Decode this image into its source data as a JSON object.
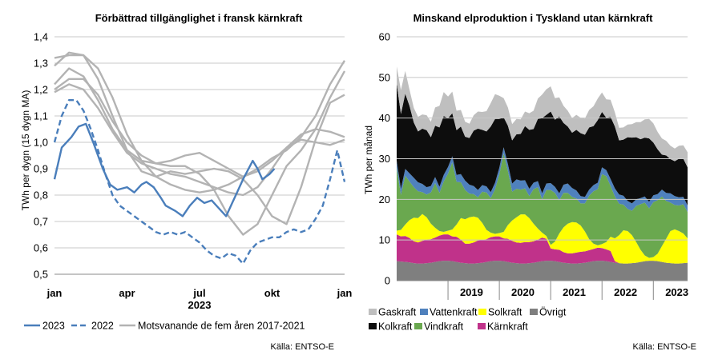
{
  "chart_data": [
    {
      "type": "line",
      "title": "Förbättrad tillgänglighet i fransk kärnkraft",
      "ylabel": "TWh per dygn (15 dygn MA)",
      "xlabel": "2023",
      "ylim": [
        0.5,
        1.4
      ],
      "yticks": [
        "1,4",
        "1,3",
        "1,2",
        "1,1",
        "1,0",
        "0,9",
        "0,8",
        "0,7",
        "0,6",
        "0,5"
      ],
      "yticks_values": [
        1.4,
        1.3,
        1.2,
        1.1,
        1.0,
        0.9,
        0.8,
        0.7,
        0.6,
        0.5
      ],
      "xticks": [
        "jan",
        "apr",
        "jul",
        "okt",
        "jan"
      ],
      "xticks_months": [
        0,
        3,
        6,
        9,
        12
      ],
      "grid": true,
      "legend_position": "bottom",
      "legend": [
        "2023",
        "2022",
        "Motsvanande de fem åren 2017-2021"
      ],
      "source": "Källa: ENTSO-E",
      "colors": {
        "s2023": "#4a7ebb",
        "s2022": "#4a7ebb",
        "hist": "#b3b3b3"
      },
      "series": [
        {
          "name": "2023",
          "style": "solid",
          "months": [
            0,
            0.3,
            0.7,
            1.0,
            1.3,
            1.6,
            2.0,
            2.3,
            2.6,
            3.0,
            3.3,
            3.6,
            3.8,
            4.1,
            4.4,
            4.6,
            5.0,
            5.3,
            5.6,
            5.9,
            6.2,
            6.5,
            6.8,
            7.1,
            7.3,
            7.5,
            7.8,
            8.2,
            8.4,
            8.6,
            8.9,
            9.1
          ],
          "y": [
            0.86,
            0.98,
            1.02,
            1.06,
            1.07,
            1.0,
            0.9,
            0.84,
            0.82,
            0.83,
            0.81,
            0.84,
            0.85,
            0.83,
            0.79,
            0.76,
            0.74,
            0.72,
            0.76,
            0.79,
            0.77,
            0.78,
            0.75,
            0.72,
            0.76,
            0.8,
            0.86,
            0.93,
            0.9,
            0.86,
            0.88,
            0.9
          ]
        },
        {
          "name": "2022",
          "style": "dashed",
          "months": [
            0,
            0.3,
            0.6,
            0.9,
            1.2,
            1.5,
            1.8,
            2.1,
            2.4,
            2.7,
            3.0,
            3.3,
            3.6,
            3.9,
            4.2,
            4.5,
            4.8,
            5.1,
            5.4,
            5.7,
            6.0,
            6.3,
            6.6,
            6.9,
            7.2,
            7.5,
            7.8,
            8.1,
            8.4,
            8.7,
            9.0,
            9.3,
            9.6,
            9.9,
            10.2,
            10.5,
            10.8,
            11.1,
            11.4,
            11.7,
            12.0
          ],
          "y": [
            1.0,
            1.1,
            1.16,
            1.16,
            1.12,
            1.05,
            0.97,
            0.88,
            0.8,
            0.76,
            0.74,
            0.72,
            0.7,
            0.68,
            0.66,
            0.65,
            0.66,
            0.65,
            0.66,
            0.64,
            0.62,
            0.59,
            0.57,
            0.56,
            0.58,
            0.57,
            0.54,
            0.59,
            0.62,
            0.63,
            0.64,
            0.64,
            0.66,
            0.67,
            0.66,
            0.67,
            0.71,
            0.76,
            0.86,
            0.97,
            0.85
          ]
        },
        {
          "name": "hist1",
          "style": "solid",
          "months": [
            0,
            0.6,
            1.2,
            1.8,
            2.4,
            3.0,
            3.6,
            4.2,
            4.8,
            5.4,
            6.0,
            6.6,
            7.2,
            7.8,
            8.4,
            9.0,
            9.6,
            10.2,
            10.8,
            11.4,
            12.0
          ],
          "y": [
            1.32,
            1.33,
            1.33,
            1.28,
            1.17,
            1.03,
            0.93,
            0.87,
            0.84,
            0.82,
            0.81,
            0.82,
            0.84,
            0.87,
            0.9,
            0.94,
            0.97,
            1.02,
            1.1,
            1.22,
            1.31
          ]
        },
        {
          "name": "hist2",
          "style": "solid",
          "months": [
            0,
            0.6,
            1.2,
            1.8,
            2.4,
            3.0,
            3.6,
            4.2,
            4.8,
            5.4,
            6.0,
            6.6,
            7.2,
            7.8,
            8.4,
            9.0,
            9.6,
            10.2,
            10.8,
            11.4,
            12.0
          ],
          "y": [
            1.29,
            1.34,
            1.33,
            1.24,
            1.1,
            0.97,
            0.89,
            0.87,
            0.89,
            0.88,
            0.89,
            0.9,
            0.89,
            0.86,
            0.8,
            0.72,
            0.69,
            0.83,
            1.01,
            1.15,
            1.18
          ]
        },
        {
          "name": "hist3",
          "style": "solid",
          "months": [
            0,
            0.6,
            1.2,
            1.8,
            2.4,
            3.0,
            3.6,
            4.2,
            4.8,
            5.4,
            6.0,
            6.6,
            7.2,
            7.8,
            8.4,
            9.0,
            9.6,
            10.2,
            10.8,
            11.4,
            12.0
          ],
          "y": [
            1.22,
            1.28,
            1.25,
            1.16,
            1.05,
            0.97,
            0.93,
            0.92,
            0.93,
            0.95,
            0.96,
            0.93,
            0.9,
            0.87,
            0.89,
            0.93,
            0.98,
            1.03,
            1.05,
            1.04,
            1.02
          ]
        },
        {
          "name": "hist4",
          "style": "solid",
          "months": [
            0,
            0.6,
            1.2,
            1.8,
            2.4,
            3.0,
            3.6,
            4.2,
            4.8,
            5.4,
            6.0,
            6.6,
            7.2,
            7.8,
            8.4,
            9.0,
            9.6,
            10.2,
            10.8,
            11.4,
            12.0
          ],
          "y": [
            1.19,
            1.22,
            1.2,
            1.13,
            1.04,
            0.96,
            0.92,
            0.9,
            0.88,
            0.87,
            0.85,
            0.83,
            0.81,
            0.8,
            0.83,
            0.9,
            0.98,
            1.01,
            1.0,
            0.99,
            1.01
          ]
        },
        {
          "name": "hist5",
          "style": "solid",
          "months": [
            0,
            0.6,
            1.2,
            1.8,
            2.4,
            3.0,
            3.6,
            4.2,
            4.8,
            5.4,
            6.0,
            6.6,
            7.2,
            7.8,
            8.4,
            9.0,
            9.6,
            10.2,
            10.8,
            11.4,
            12.0
          ],
          "y": [
            1.2,
            1.24,
            1.24,
            1.18,
            1.08,
            1.0,
            0.95,
            0.92,
            0.91,
            0.91,
            0.88,
            0.82,
            0.72,
            0.65,
            0.69,
            0.8,
            0.91,
            0.97,
            1.05,
            1.17,
            1.27
          ]
        }
      ]
    },
    {
      "type": "area",
      "stacked": true,
      "title": "Minskand elproduktion i Tyskland utan kärnkraft",
      "ylabel": "TWh per månad",
      "ylim": [
        0,
        60
      ],
      "yticks": [
        "60",
        "50",
        "40",
        "30",
        "20",
        "10",
        "0"
      ],
      "yticks_values": [
        60,
        50,
        40,
        30,
        20,
        10,
        0
      ],
      "xticks": [
        "2019",
        "2020",
        "2021",
        "2022",
        "2023"
      ],
      "x_start": "2018-01",
      "x_end": "2023-09",
      "grid": true,
      "legend_position": "bottom",
      "source": "Källa: ENTSO-E",
      "series": [
        {
          "name": "Övrigt",
          "color": "#7f7f7f",
          "values": [
            4.8,
            4.7,
            4.6,
            4.5,
            4.3,
            4.2,
            4.2,
            4.3,
            4.4,
            4.6,
            4.8,
            4.9,
            4.9,
            4.8,
            4.6,
            4.4,
            4.3,
            4.2,
            4.2,
            4.3,
            4.4,
            4.6,
            4.8,
            4.9,
            4.9,
            4.8,
            4.6,
            4.4,
            4.3,
            4.2,
            4.2,
            4.3,
            4.4,
            4.6,
            4.8,
            4.9,
            4.9,
            4.8,
            4.6,
            4.4,
            4.3,
            4.2,
            4.2,
            4.3,
            4.4,
            4.6,
            4.8,
            4.9,
            4.9,
            4.8,
            4.6,
            4.4,
            4.3,
            4.2,
            4.2,
            4.3,
            4.4,
            4.6,
            4.8,
            4.9,
            4.9,
            4.8,
            4.6,
            4.4,
            4.3,
            4.2,
            4.2,
            4.3,
            4.4
          ]
        },
        {
          "name": "Kärnkraft",
          "color": "#c0328a",
          "values": [
            6.6,
            6.2,
            6.4,
            6.0,
            5.4,
            5.2,
            5.6,
            5.8,
            5.8,
            6.0,
            6.3,
            6.5,
            6.5,
            6.1,
            6.2,
            5.7,
            4.8,
            4.9,
            5.2,
            5.6,
            5.6,
            5.6,
            5.9,
            6.0,
            6.0,
            5.6,
            5.7,
            5.4,
            5.1,
            5.1,
            5.3,
            5.2,
            5.3,
            5.5,
            5.8,
            5.4,
            3.0,
            2.9,
            3.0,
            2.6,
            2.4,
            2.5,
            2.7,
            2.8,
            2.8,
            2.9,
            3.0,
            3.2,
            3.1,
            2.9,
            2.7,
            0.4,
            0,
            0,
            0,
            0,
            0,
            0,
            0,
            0,
            0,
            0,
            0,
            0,
            0,
            0,
            0,
            0,
            0
          ]
        },
        {
          "name": "Solkraft",
          "color": "#ffff00",
          "values": [
            0.9,
            1.6,
            2.8,
            4.4,
            5.8,
            6.0,
            6.6,
            5.5,
            3.8,
            2.4,
            1.1,
            0.6,
            0.9,
            1.7,
            3.0,
            5.3,
            6.0,
            6.5,
            6.4,
            5.6,
            4.2,
            2.3,
            1.1,
            0.6,
            0.8,
            1.6,
            3.4,
            5.0,
            6.2,
            7.0,
            6.8,
            5.9,
            4.3,
            2.7,
            1.2,
            0.7,
            0.9,
            1.9,
            4.0,
            6.1,
            7.3,
            7.7,
            7.4,
            6.5,
            4.9,
            2.7,
            1.3,
            0.6,
            1.0,
            1.8,
            3.5,
            5.6,
            6.9,
            8.2,
            8.0,
            6.9,
            5.1,
            3.0,
            1.4,
            0.7,
            0.9,
            1.8,
            3.9,
            5.9,
            7.9,
            8.4,
            8.0,
            7.3,
            6.0
          ]
        },
        {
          "name": "Vindkraft",
          "color": "#6aa84f",
          "values": [
            15.5,
            8.6,
            12.0,
            9.5,
            7.5,
            6.6,
            5.4,
            5.6,
            7.7,
            11.0,
            9.4,
            12.4,
            14.0,
            16.5,
            10.5,
            8.8,
            7.2,
            5.8,
            5.5,
            5.0,
            7.7,
            9.2,
            8.5,
            11.0,
            14.4,
            19.3,
            13.3,
            7.1,
            7.0,
            6.1,
            6.4,
            5.4,
            8.5,
            10.2,
            8.2,
            11.3,
            13.5,
            12.0,
            8.2,
            8.5,
            7.6,
            6.2,
            5.9,
            5.4,
            6.9,
            10.7,
            12.9,
            13.8,
            17.2,
            16.2,
            12.5,
            10.3,
            7.7,
            6.3,
            5.4,
            6.0,
            8.9,
            11.2,
            13.0,
            12.2,
            13.5,
            13.2,
            12.2,
            9.3,
            7.0,
            6.0,
            6.3,
            7.2,
            6.5
          ]
        },
        {
          "name": "Vattenkraft",
          "color": "#4f81bd",
          "values": [
            1.7,
            1.5,
            1.7,
            2.0,
            2.3,
            2.2,
            2.0,
            1.8,
            1.6,
            1.5,
            1.5,
            1.6,
            1.7,
            1.5,
            1.7,
            2.0,
            2.3,
            2.2,
            2.0,
            1.8,
            1.6,
            1.5,
            1.5,
            1.6,
            1.7,
            1.5,
            1.7,
            2.0,
            2.3,
            2.2,
            2.0,
            1.8,
            1.6,
            1.5,
            1.5,
            1.6,
            1.7,
            1.5,
            1.7,
            2.0,
            2.3,
            2.2,
            2.0,
            1.8,
            1.6,
            1.5,
            1.5,
            1.6,
            1.7,
            1.5,
            1.7,
            2.0,
            2.3,
            2.2,
            2.0,
            1.8,
            1.6,
            1.5,
            1.5,
            1.6,
            1.7,
            1.5,
            1.7,
            2.0,
            2.3,
            2.2,
            2.0,
            1.8,
            1.6
          ]
        },
        {
          "name": "Kolkraft",
          "color": "#0d0d0d",
          "values": [
            19.0,
            18.4,
            18.5,
            16.6,
            13.6,
            12.5,
            13.6,
            14.0,
            12.0,
            12.6,
            14.6,
            14.5,
            12.0,
            10.6,
            11.0,
            11.7,
            10.8,
            11.5,
            13.6,
            15.1,
            13.6,
            13.5,
            16.1,
            15.7,
            12.0,
            7.4,
            9.4,
            10.6,
            11.1,
            11.5,
            13.3,
            14.5,
            13.2,
            15.3,
            18.5,
            16.9,
            17.6,
            16.5,
            18.9,
            15.2,
            14.0,
            13.6,
            14.9,
            15.5,
            15.3,
            15.3,
            14.5,
            15.4,
            13.6,
            12.9,
            15.3,
            15.2,
            13.3,
            13.8,
            15.7,
            16.2,
            15.3,
            14.5,
            14.5,
            15.6,
            13.0,
            11.0,
            8.6,
            9.2,
            8.4,
            8.6,
            9.5,
            9.4,
            9.4
          ]
        },
        {
          "name": "Gaskraft",
          "color": "#bfbfbf",
          "values": [
            4.2,
            5.9,
            5.6,
            4.0,
            3.6,
            3.6,
            3.5,
            3.7,
            3.8,
            4.5,
            5.3,
            5.9,
            5.3,
            5.3,
            4.8,
            4.1,
            3.7,
            3.5,
            3.8,
            4.2,
            4.4,
            5.0,
            5.8,
            6.1,
            5.7,
            4.7,
            4.5,
            4.0,
            3.8,
            3.6,
            3.6,
            4.1,
            4.5,
            5.0,
            5.8,
            6.3,
            6.2,
            5.3,
            4.7,
            4.2,
            3.9,
            3.6,
            3.7,
            3.8,
            4.0,
            4.3,
            4.9,
            5.3,
            4.8,
            4.5,
            4.2,
            3.5,
            3.1,
            3.0,
            3.1,
            3.3,
            3.7,
            4.2,
            4.5,
            4.8,
            4.7,
            4.3,
            4.0,
            3.6,
            3.3,
            3.1,
            3.2,
            3.3,
            3.7
          ]
        }
      ],
      "legend": [
        "Gaskraft",
        "Vattenkraft",
        "Solkraft",
        "Övrigt",
        "Kolkraft",
        "Vindkraft",
        "Kärnkraft"
      ]
    }
  ]
}
